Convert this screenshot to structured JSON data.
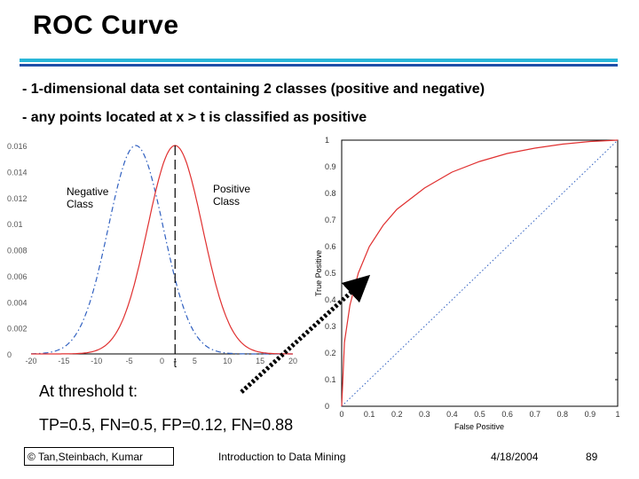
{
  "slide": {
    "title": "ROC Curve",
    "bullets": [
      "- 1-dimensional data set containing 2 classes (positive and negative)",
      "- any points located at x > t is classified as positive"
    ],
    "threshold_heading": "At threshold t:",
    "threshold_stats": "TP=0.5, FN=0.5, FP=0.12, FN=0.88",
    "footer": {
      "copyright": "© Tan,Steinbach, Kumar",
      "course": "Introduction to Data Mining",
      "date": "4/18/2004",
      "page": "89"
    },
    "colors": {
      "rule_cyan": "#29b6d8",
      "rule_blue": "#1f4fa8",
      "curve_red": "#e03030",
      "curve_blue": "#3060c0"
    }
  },
  "chart_data": [
    {
      "type": "line",
      "series": [
        {
          "name": "Negative Class",
          "color": "#3060c0",
          "style": "dash-dot",
          "mean": -4,
          "sd": 4.2
        },
        {
          "name": "Positive Class",
          "color": "#e03030",
          "style": "solid",
          "mean": 2,
          "sd": 4.2
        }
      ],
      "annotations": [
        "Negative Class",
        "Positive Class",
        "t"
      ],
      "threshold": 2,
      "xlim": [
        -20,
        20
      ],
      "ylim": [
        0,
        0.1
      ],
      "xticks": [
        "-20",
        "-15",
        "-10",
        "-5",
        "0",
        "5",
        "10",
        "15",
        "20"
      ],
      "yticks": [
        "0",
        "0.002",
        "0.004",
        "0.006",
        "0.008",
        "0.01",
        "0.012",
        "0.014",
        "0.016"
      ]
    },
    {
      "type": "line",
      "ylabel": "True Positive",
      "xlabel": "False Positive",
      "xlim": [
        0,
        1
      ],
      "ylim": [
        0,
        1
      ],
      "xticks": [
        "0",
        "0.1",
        "0.2",
        "0.3",
        "0.4",
        "0.5",
        "0.6",
        "0.7",
        "0.8",
        "0.9",
        "1"
      ],
      "yticks": [
        "0",
        "0.1",
        "0.2",
        "0.3",
        "0.4",
        "0.5",
        "0.6",
        "0.7",
        "0.8",
        "0.9",
        "1"
      ],
      "series": [
        {
          "color": "#e03030",
          "x": [
            0,
            0.01,
            0.03,
            0.06,
            0.1,
            0.15,
            0.2,
            0.3,
            0.4,
            0.5,
            0.6,
            0.7,
            0.8,
            0.9,
            1.0
          ],
          "y": [
            0,
            0.24,
            0.38,
            0.5,
            0.6,
            0.68,
            0.74,
            0.82,
            0.88,
            0.92,
            0.95,
            0.97,
            0.985,
            0.995,
            1.0
          ]
        },
        {
          "color": "#3060c0",
          "style": "dotted",
          "x": [
            0,
            1
          ],
          "y": [
            0,
            1
          ]
        }
      ]
    }
  ]
}
